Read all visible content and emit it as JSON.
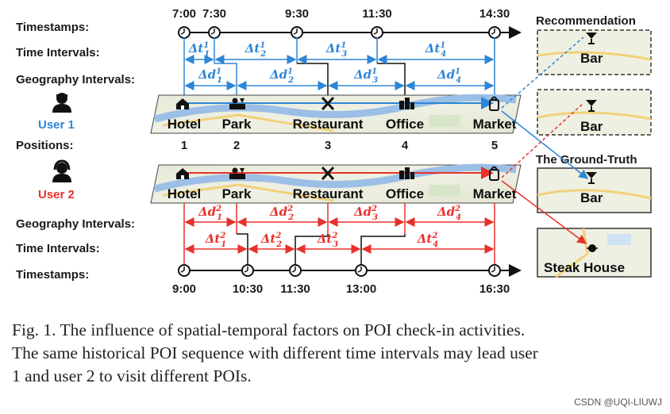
{
  "rows": {
    "timestamps": "Timestamps:",
    "time_intervals": "Time Intervals:",
    "geography_intervals": "Geography Intervals:",
    "positions": "Positions:"
  },
  "users": {
    "user1": "User 1",
    "user2": "User 2"
  },
  "top_times": [
    "7:00",
    "7:30",
    "9:30",
    "11:30",
    "14:30"
  ],
  "bottom_times": [
    "9:00",
    "10:30",
    "11:30",
    "13:00",
    "16:30"
  ],
  "pois": [
    "Hotel",
    "Park",
    "Restaurant",
    "Office",
    "Market"
  ],
  "positions": [
    "1",
    "2",
    "3",
    "4",
    "5"
  ],
  "intervals": {
    "dt_base": "Δt",
    "dd_base": "Δd",
    "subs": [
      "1",
      "2",
      "3",
      "4"
    ],
    "sup_user1": "1",
    "sup_user2": "2"
  },
  "side": {
    "recommendation": "Recommendation",
    "ground_truth": "The Ground-Truth",
    "bar": "Bar",
    "steak_house": "Steak House"
  },
  "colors": {
    "user1": "#2e86d6",
    "user2": "#e8312b"
  },
  "icons": [
    "hotel-icon",
    "park-icon",
    "restaurant-icon",
    "office-icon",
    "market-icon",
    "cocktail-icon",
    "steak-icon",
    "user-icon"
  ],
  "caption": {
    "line1": "Fig. 1.  The influence of spatial-temporal factors on POI check-in activities.",
    "line2": "The same historical POI sequence with different time intervals may lead user",
    "line3": "1 and user 2 to visit different POIs."
  },
  "watermark": "CSDN @UQI-LIUWJ"
}
